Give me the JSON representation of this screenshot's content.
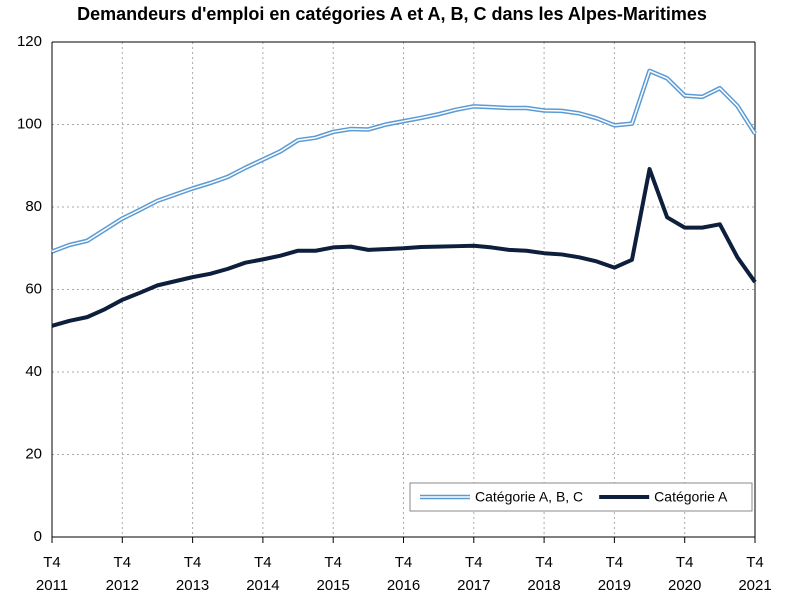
{
  "chart_data": {
    "type": "line",
    "title": "Demandeurs d'emploi en catégories A et A, B, C dans les Alpes-Maritimes",
    "categories": [
      "T4\n2011",
      null,
      null,
      null,
      "T4\n2012",
      null,
      null,
      null,
      "T4\n2013",
      null,
      null,
      null,
      "T4\n2014",
      null,
      null,
      null,
      "T4\n2015",
      null,
      null,
      null,
      "T4\n2016",
      null,
      null,
      null,
      "T4\n2017",
      null,
      null,
      null,
      "T4\n2018",
      null,
      null,
      null,
      "T4\n2019",
      null,
      null,
      null,
      "T4\n2020",
      null,
      null,
      null,
      "T4\n2021"
    ],
    "series": [
      {
        "name": "Catégorie A, B, C",
        "color": "#5b9bd5",
        "style": "double",
        "values": [
          69.2,
          70.8,
          71.8,
          74.5,
          77.2,
          79.3,
          81.5,
          83,
          84.5,
          85.8,
          87.3,
          89.5,
          91.5,
          93.5,
          96.2,
          96.8,
          98.2,
          98.9,
          98.8,
          100,
          100.8,
          101.6,
          102.5,
          103.6,
          104.4,
          104.2,
          104,
          104,
          103.4,
          103.3,
          102.7,
          101.5,
          99.8,
          100.2,
          113,
          111.2,
          107,
          106.7,
          108.8,
          104.5,
          97.8
        ]
      },
      {
        "name": "Catégorie A",
        "color": "#0d1f3c",
        "style": "solid",
        "values": [
          51.2,
          52.4,
          53.3,
          55.2,
          57.5,
          59.2,
          61,
          62,
          63,
          63.8,
          65,
          66.5,
          67.3,
          68.2,
          69.4,
          69.4,
          70.2,
          70.4,
          69.6,
          69.8,
          70,
          70.3,
          70.4,
          70.5,
          70.6,
          70.2,
          69.6,
          69.4,
          68.8,
          68.5,
          67.8,
          66.8,
          65.3,
          67.2,
          89.2,
          77.5,
          75,
          75,
          75.8,
          67.8,
          61.8
        ]
      }
    ],
    "ylim": [
      0,
      120
    ],
    "yticks": [
      0,
      20,
      40,
      60,
      80,
      100,
      120
    ],
    "grid": true,
    "legend": "bottom-right"
  }
}
